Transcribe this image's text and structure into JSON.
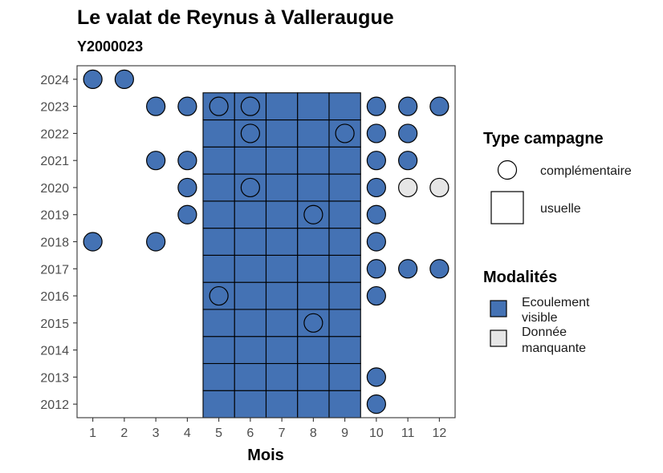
{
  "chart_data": {
    "type": "scatter",
    "title": "Le valat de Reynus à Valleraugue",
    "subtitle": "Y2000023",
    "xlabel": "Mois",
    "ylabel": "",
    "x_ticks": [
      1,
      2,
      3,
      4,
      5,
      6,
      7,
      8,
      9,
      10,
      11,
      12
    ],
    "y_ticks": [
      2012,
      2013,
      2014,
      2015,
      2016,
      2017,
      2018,
      2019,
      2020,
      2021,
      2022,
      2023,
      2024
    ],
    "xlim": [
      0.5,
      12.5
    ],
    "ylim": [
      2011.5,
      2024.5
    ],
    "colors": {
      "visible": "#4472B4",
      "missing": "#E6E6E6",
      "outline": "#000000"
    },
    "usuelle_months": [
      5,
      6,
      7,
      8,
      9
    ],
    "usuelle_years": [
      2012,
      2013,
      2014,
      2015,
      2016,
      2017,
      2018,
      2019,
      2020,
      2021,
      2022,
      2023
    ],
    "complementaire_points": [
      {
        "year": 2024,
        "months": [
          1,
          2
        ],
        "modalite": "visible"
      },
      {
        "year": 2023,
        "months": [
          3,
          4,
          5,
          6,
          10,
          11,
          12
        ],
        "modalite": "visible"
      },
      {
        "year": 2022,
        "months": [
          6,
          9,
          10,
          11
        ],
        "modalite": "visible"
      },
      {
        "year": 2021,
        "months": [
          3,
          4,
          10,
          11
        ],
        "modalite": "visible"
      },
      {
        "year": 2020,
        "months": [
          4,
          6,
          10
        ],
        "modalite": "visible"
      },
      {
        "year": 2020,
        "months": [
          11,
          12
        ],
        "modalite": "missing"
      },
      {
        "year": 2019,
        "months": [
          4,
          8,
          10
        ],
        "modalite": "visible"
      },
      {
        "year": 2018,
        "months": [
          1,
          3,
          10
        ],
        "modalite": "visible"
      },
      {
        "year": 2017,
        "months": [
          10,
          11,
          12
        ],
        "modalite": "visible"
      },
      {
        "year": 2016,
        "months": [
          5,
          10
        ],
        "modalite": "visible"
      },
      {
        "year": 2015,
        "months": [
          8
        ],
        "modalite": "visible"
      },
      {
        "year": 2013,
        "months": [
          10
        ],
        "modalite": "visible"
      },
      {
        "year": 2012,
        "months": [
          10
        ],
        "modalite": "visible"
      }
    ],
    "legend": {
      "type_title": "Type campagne",
      "type_items": [
        "complémentaire",
        "usuelle"
      ],
      "modalite_title": "Modalités",
      "modalite_items": [
        {
          "line1": "Ecoulement",
          "line2": "visible",
          "key": "visible"
        },
        {
          "line1": "Donnée",
          "line2": "manquante",
          "key": "missing"
        }
      ],
      "position": "right"
    }
  }
}
